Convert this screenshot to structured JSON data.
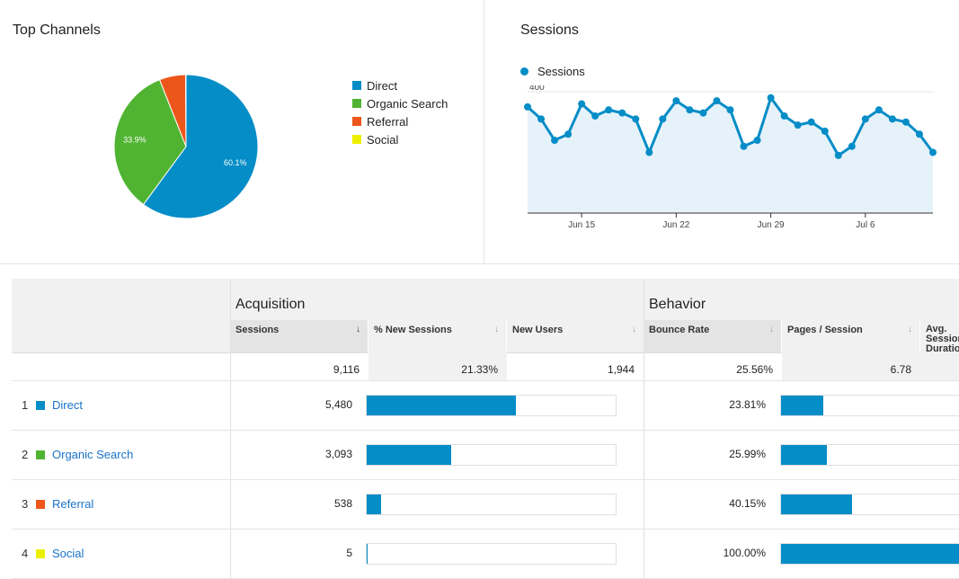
{
  "top_channels": {
    "title": "Top Channels",
    "legend": [
      {
        "label": "Direct",
        "color": "#058dc7"
      },
      {
        "label": "Organic Search",
        "color": "#50b432"
      },
      {
        "label": "Referral",
        "color": "#ed561b"
      },
      {
        "label": "Social",
        "color": "#edef00"
      }
    ]
  },
  "sessions": {
    "title": "Sessions",
    "legend_label": "Sessions",
    "color": "#058dc7"
  },
  "chart_data": [
    {
      "type": "pie",
      "title": "Top Channels",
      "categories": [
        "Direct",
        "Organic Search",
        "Referral",
        "Social"
      ],
      "values": [
        60.1,
        33.9,
        5.9,
        0.1
      ],
      "labels": [
        "60.1%",
        "33.9%",
        "",
        ""
      ],
      "colors": [
        "#058dc7",
        "#50b432",
        "#ed561b",
        "#edef00"
      ]
    },
    {
      "type": "area",
      "title": "Sessions",
      "series": [
        {
          "name": "Sessions",
          "values": [
            350,
            310,
            240,
            260,
            360,
            320,
            340,
            330,
            310,
            200,
            310,
            370,
            340,
            330,
            370,
            340,
            220,
            240,
            380,
            320,
            290,
            300,
            270,
            190,
            220,
            310,
            340,
            310,
            300,
            260,
            200
          ]
        }
      ],
      "y_ticks": [
        "400",
        "200"
      ],
      "ylim": [
        0,
        400
      ],
      "x_ticks": [
        "Jun 15",
        "Jun 22",
        "Jun 29",
        "Jul 6"
      ],
      "x_tick_index": [
        4,
        11,
        18,
        25
      ]
    }
  ],
  "table": {
    "groups": {
      "acquisition": "Acquisition",
      "behavior": "Behavior"
    },
    "columns": [
      "Sessions",
      "% New Sessions",
      "New Users",
      "Bounce Rate",
      "Pages / Session",
      "Avg. Session Duration"
    ],
    "sort_arrow": "↓",
    "totals": {
      "sessions": "9,116",
      "new_sessions": "21.33%",
      "new_users": "1,944",
      "bounce_rate": "25.56%",
      "pages_session": "6.78"
    },
    "rows": [
      {
        "num": "1",
        "name": "Direct",
        "color": "#058dc7",
        "sessions": "5,480",
        "sessions_frac": 0.601,
        "bounce": "23.81%",
        "bounce_frac": 0.2381
      },
      {
        "num": "2",
        "name": "Organic Search",
        "color": "#50b432",
        "sessions": "3,093",
        "sessions_frac": 0.339,
        "bounce": "25.99%",
        "bounce_frac": 0.2599
      },
      {
        "num": "3",
        "name": "Referral",
        "color": "#ed561b",
        "sessions": "538",
        "sessions_frac": 0.059,
        "bounce": "40.15%",
        "bounce_frac": 0.4015
      },
      {
        "num": "4",
        "name": "Social",
        "color": "#edef00",
        "sessions": "5",
        "sessions_frac": 0.0005,
        "bounce": "100.00%",
        "bounce_frac": 1.0
      }
    ]
  }
}
